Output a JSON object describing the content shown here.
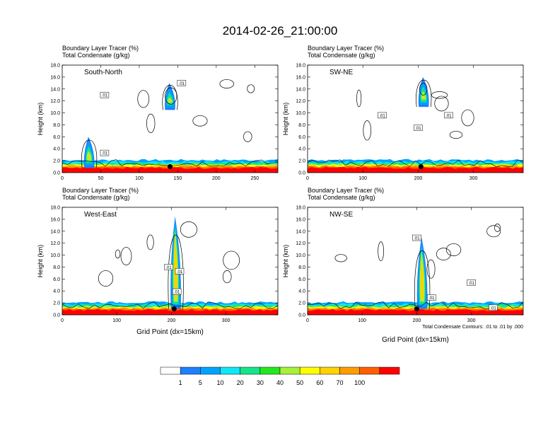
{
  "title": "2014-02-26_21:00:00",
  "chart_data": {
    "type": "contour",
    "y_label": "Height (km)",
    "x_label": "Grid Point (dx=15km)",
    "y_range": [
      0,
      18
    ],
    "y_ticks": [
      "0.0",
      "2.0",
      "4.0",
      "6.0",
      "8.0",
      "10.0",
      "12.0",
      "14.0",
      "16.0",
      "18.0"
    ],
    "field1": "Boundary Layer Tracer",
    "field1_units": "(%)",
    "field2": "Total Condensate",
    "field2_units": "(g/kg)",
    "contour_note": "Total Condensate Contours: .01 to .01 by .000",
    "contour_label": ".01",
    "panels": [
      {
        "name": "South-North",
        "x_range": [
          0,
          280
        ],
        "x_ticks": [
          0,
          50,
          100,
          150,
          200,
          250
        ],
        "marker_x": 140,
        "marker_y": 1.0,
        "plume": [
          {
            "x": 35,
            "top": 6.0
          },
          {
            "x": 140,
            "top": 15.0,
            "base": 10.5
          }
        ],
        "labels": [
          {
            "x": 55,
            "y": 13.0
          },
          {
            "x": 55,
            "y": 3.3
          },
          {
            "x": 155,
            "y": 15.0
          }
        ]
      },
      {
        "name": "SW-NE",
        "x_range": [
          0,
          390
        ],
        "x_ticks": [
          0,
          100,
          200,
          300
        ],
        "marker_x": 205,
        "marker_y": 1.0,
        "plume": [
          {
            "x": 210,
            "top": 16.0,
            "base": 11.0
          }
        ],
        "labels": [
          {
            "x": 135,
            "y": 9.6
          },
          {
            "x": 200,
            "y": 7.5
          },
          {
            "x": 255,
            "y": 9.6
          }
        ]
      },
      {
        "name": "West-East",
        "x_range": [
          0,
          395
        ],
        "x_ticks": [
          0,
          100,
          200,
          300
        ],
        "marker_x": 205,
        "marker_y": 1.0,
        "plume": [
          {
            "x": 208,
            "top": 16.5,
            "base": 1.0
          }
        ],
        "labels": [
          {
            "x": 195,
            "y": 8.0
          },
          {
            "x": 215,
            "y": 7.3
          },
          {
            "x": 210,
            "y": 3.9
          }
        ]
      },
      {
        "name": "NW-SE",
        "x_range": [
          0,
          395
        ],
        "x_ticks": [
          0,
          100,
          200,
          300
        ],
        "marker_x": 200,
        "marker_y": 1.0,
        "plume": [
          {
            "x": 210,
            "top": 13.0,
            "base": 1.0
          }
        ],
        "labels": [
          {
            "x": 200,
            "y": 12.9
          },
          {
            "x": 227,
            "y": 2.9
          },
          {
            "x": 300,
            "y": 5.4
          },
          {
            "x": 340,
            "y": 1.2
          }
        ]
      }
    ],
    "colorbar": {
      "labels": [
        "1",
        "5",
        "10",
        "20",
        "30",
        "40",
        "50",
        "60",
        "70",
        "100"
      ],
      "colors": [
        "#ffffff",
        "#1e7fff",
        "#00a2ff",
        "#10e6f6",
        "#15e489",
        "#23e71f",
        "#a6f13a",
        "#fefe00",
        "#ffd200",
        "#ff9c00",
        "#ff5f00",
        "#ff0000"
      ]
    }
  }
}
